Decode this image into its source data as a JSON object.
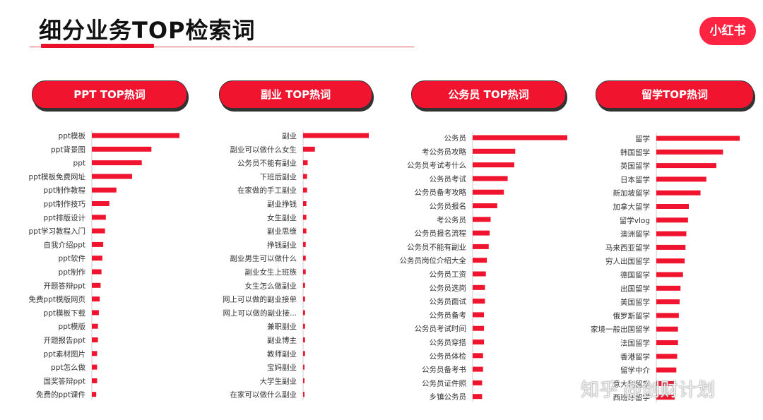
{
  "title": "细分业务TOP检索词",
  "logo_text": "小红书",
  "watermark": "知乎 @创财计划",
  "colors": {
    "accent": "#e8102b",
    "bar": "#f0142e",
    "logo": "#ff2442"
  },
  "chart_data": [
    {
      "type": "bar",
      "orientation": "horizontal",
      "title": "PPT TOP热词",
      "categories": [
        "ppt模板",
        "ppt背景图",
        "ppt",
        "ppt模板免费网址",
        "ppt制作教程",
        "ppt制作技巧",
        "ppt排版设计",
        "ppt学习教程入门",
        "自我介绍ppt",
        "ppt软件",
        "ppt制作",
        "开题答辩ppt",
        "免费ppt模版网页",
        "ppt模板下载",
        "ppt模版",
        "开题报告ppt",
        "ppt素材图片",
        "ppt怎么做",
        "国奖答辩ppt",
        "免费的ppt课件"
      ],
      "values": [
        100,
        68,
        57,
        46,
        28,
        20,
        16,
        15,
        13,
        12,
        11,
        10,
        9,
        8,
        7,
        7,
        6,
        6,
        6,
        5
      ]
    },
    {
      "type": "bar",
      "orientation": "horizontal",
      "title": "副业 TOP热词",
      "categories": [
        "副业",
        "副业可以做什么女生",
        "公务员不能有副业",
        "下班后副业",
        "在家做的手工副业",
        "副业挣钱",
        "女生副业",
        "副业思维",
        "挣钱副业",
        "副业男生可以做什么",
        "副业女生上班族",
        "女生怎么做副业",
        "网上可以做的副业接单",
        "网上可以做的副业接...",
        "兼职副业",
        "副业博主",
        "教师副业",
        "宝妈副业",
        "大学生副业",
        "在家可以做什么副业"
      ],
      "values": [
        100,
        18,
        7,
        6,
        6,
        5,
        5,
        5,
        4,
        4,
        4,
        3,
        3,
        3,
        3,
        3,
        3,
        2,
        2,
        2
      ]
    },
    {
      "type": "bar",
      "orientation": "horizontal",
      "title": "公务员 TOP热词",
      "categories": [
        "公务员",
        "考公务员攻略",
        "公务员考试考什么",
        "公务员考试",
        "公务员备考攻略",
        "公务员报名",
        "考公务员",
        "公务员报名流程",
        "公务员不能有副业",
        "公务员岗位介绍大全",
        "公务员工资",
        "公务员选岗",
        "公务员面试",
        "公务员备考",
        "公务员考试时间",
        "公务员穿搭",
        "公务员体检",
        "公务员备考书",
        "公务员证件照",
        "乡镇公务员"
      ],
      "values": [
        100,
        45,
        44,
        37,
        33,
        26,
        19,
        18,
        17,
        15,
        14,
        13,
        13,
        12,
        12,
        12,
        11,
        11,
        10,
        10
      ]
    },
    {
      "type": "bar",
      "orientation": "horizontal",
      "title": "留学TOP热词",
      "categories": [
        "留学",
        "韩国留学",
        "英国留学",
        "日本留学",
        "新加坡留学",
        "加拿大留学",
        "留学vlog",
        "澳洲留学",
        "马来西亚留学",
        "穷人出国留学",
        "德国留学",
        "出国留学",
        "美国留学",
        "俄罗斯留学",
        "家境一般出国留学",
        "法国留学",
        "香港留学",
        "留学中介",
        "意大利留学",
        "西班牙留学"
      ],
      "values": [
        100,
        80,
        72,
        60,
        53,
        39,
        38,
        36,
        35,
        34,
        32,
        29,
        28,
        27,
        26,
        26,
        25,
        24,
        23,
        22
      ]
    }
  ]
}
